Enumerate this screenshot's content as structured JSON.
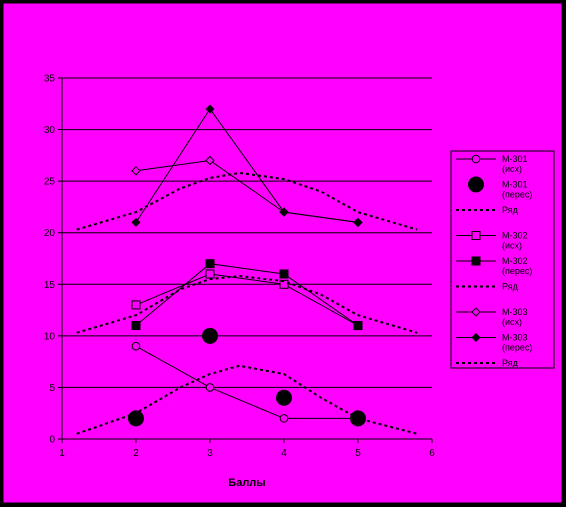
{
  "chart_data": {
    "type": "line",
    "title": "",
    "xlabel": "Баллы",
    "ylabel": "",
    "xlim": [
      1,
      6
    ],
    "ylim": [
      0,
      35
    ],
    "x_ticks": [
      "1",
      "2",
      "3",
      "4",
      "5",
      "6"
    ],
    "y_ticks": [
      "0",
      "5",
      "10",
      "15",
      "20",
      "25",
      "30",
      "35"
    ],
    "grid": true,
    "legend_position": "right",
    "colors": {
      "background": "#000000",
      "plot_area": "#FF00FF",
      "series": "#000000",
      "text": "#000000"
    },
    "series": [
      {
        "name": "М-301 (исх)",
        "marker": "circle-open-small",
        "line": "solid",
        "x": [
          2,
          3,
          4,
          5
        ],
        "y": [
          9,
          5,
          2,
          2
        ]
      },
      {
        "name": "М-301 (перес)",
        "marker": "circle-filled-large",
        "line": "none",
        "x": [
          2,
          3,
          4,
          5
        ],
        "y": [
          2,
          10,
          4,
          2
        ]
      },
      {
        "name": "Ряд",
        "marker": "none",
        "line": "dotted",
        "x": [
          1.2,
          2,
          2.6,
          3,
          3.4,
          4,
          4.5,
          5,
          5.8
        ],
        "y": [
          0.5,
          2.5,
          5,
          6.3,
          7.1,
          6.3,
          4,
          2,
          0.5
        ]
      },
      {
        "name": "М-302 (исх)",
        "marker": "square-open",
        "line": "solid",
        "x": [
          2,
          3,
          4,
          5
        ],
        "y": [
          13,
          16,
          15,
          11
        ]
      },
      {
        "name": "М-302 (перес)",
        "marker": "square-filled",
        "line": "solid",
        "x": [
          2,
          3,
          4,
          5
        ],
        "y": [
          11,
          17,
          16,
          11
        ]
      },
      {
        "name": "Ряд",
        "marker": "none",
        "line": "dotted",
        "x": [
          1.2,
          2,
          2.6,
          3,
          3.4,
          4,
          4.5,
          5,
          5.8
        ],
        "y": [
          10.3,
          12,
          14.5,
          15.5,
          15.8,
          15.3,
          14,
          12,
          10.3
        ]
      },
      {
        "name": "М-303 (исх)",
        "marker": "diamond-open",
        "line": "solid",
        "x": [
          2,
          3,
          4,
          5
        ],
        "y": [
          26,
          27,
          22,
          21
        ]
      },
      {
        "name": "М-303 (перес)",
        "marker": "diamond-filled",
        "line": "solid",
        "x": [
          2,
          3,
          4,
          5
        ],
        "y": [
          21,
          32,
          22,
          21
        ]
      },
      {
        "name": "Ряд",
        "marker": "none",
        "line": "dotted",
        "x": [
          1.2,
          2,
          2.6,
          3,
          3.4,
          4,
          4.5,
          5,
          5.8
        ],
        "y": [
          20.3,
          22,
          24.3,
          25.3,
          25.8,
          25.2,
          24,
          22,
          20.3
        ]
      }
    ]
  },
  "legend": {
    "entries": [
      {
        "label_1": "М-301",
        "label_2": "(исх)"
      },
      {
        "label_1": "М-301",
        "label_2": "(перес)"
      },
      {
        "label_1": "Ряд",
        "label_2": ""
      },
      {
        "label_1": "М-302",
        "label_2": "(исх)"
      },
      {
        "label_1": "М-302",
        "label_2": "(перес)"
      },
      {
        "label_1": "Ряд",
        "label_2": ""
      },
      {
        "label_1": "М-303",
        "label_2": "(исх)"
      },
      {
        "label_1": "М-303",
        "label_2": "(перес)"
      },
      {
        "label_1": "Ряд",
        "label_2": ""
      }
    ]
  }
}
